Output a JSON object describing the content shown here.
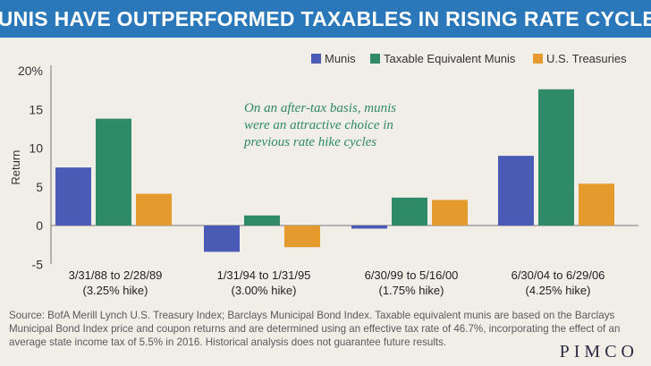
{
  "title": "MUNIS HAVE OUTPERFORMED TAXABLES IN RISING RATE CYCLES",
  "chart_data": {
    "type": "bar",
    "categories": [
      {
        "line1": "3/31/88 to 2/28/89",
        "line2": "(3.25% hike)"
      },
      {
        "line1": "1/31/94 to 1/31/95",
        "line2": "(3.00% hike)"
      },
      {
        "line1": "6/30/99 to 5/16/00",
        "line2": "(1.75% hike)"
      },
      {
        "line1": "6/30/04 to 6/29/06",
        "line2": "(4.25% hike)"
      }
    ],
    "series": [
      {
        "name": "Munis",
        "color": "#4a5bb5",
        "values": [
          7.5,
          -3.4,
          -0.4,
          9.0
        ]
      },
      {
        "name": "Taxable Equivalent Munis",
        "color": "#2f8a68",
        "values": [
          13.8,
          1.3,
          3.6,
          17.6
        ]
      },
      {
        "name": "U.S. Treasuries",
        "color": "#e49a2c",
        "values": [
          4.1,
          -2.8,
          3.3,
          5.4
        ]
      }
    ],
    "ylabel": "Return",
    "ylim": [
      -5,
      20
    ],
    "yticks": [
      "-5",
      "0",
      "5",
      "10",
      "15",
      "20%"
    ],
    "ytick_values": [
      -5,
      0,
      5,
      10,
      15,
      20
    ],
    "annotation": [
      "On an after-tax basis, munis",
      "were an attractive choice in",
      "previous rate hike cycles"
    ]
  },
  "source": "Source: BofA Merill Lynch U.S. Treasury Index; Barclays Municipal Bond Index. Taxable equivalent munis are based on the Barclays Municipal Bond Index price and coupon returns and are determined using an effective tax rate of 46.7%, incorporating the effect of an average state income tax of 5.5% in 2016. Historical analysis does not guarantee future results.",
  "logo": "PIMCO",
  "colors": {
    "title_bg": "#2a78b9",
    "annotation": "#2e8a62",
    "background": "#f1eee8"
  }
}
